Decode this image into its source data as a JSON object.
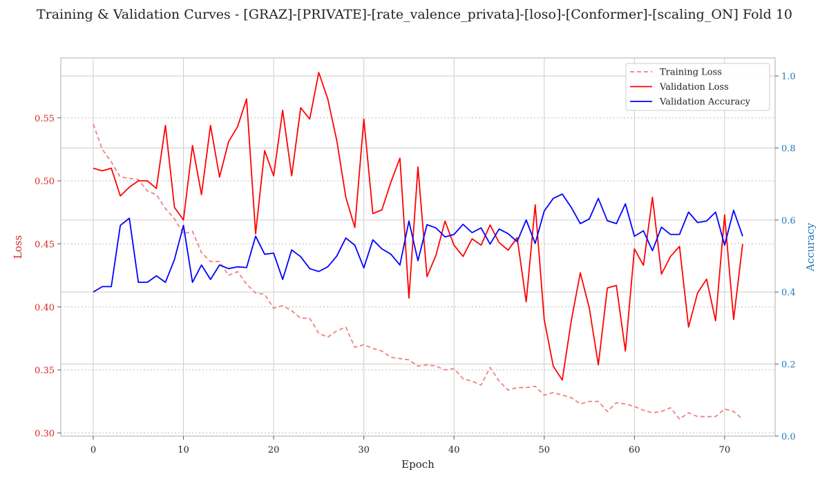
{
  "figure": {
    "title": "Training & Validation Curves - [GRAZ]-[PRIVATE]-[rate_valence_privata]-[loso]-[Conformer]-[scaling_ON] Fold 10"
  },
  "chart_data": {
    "type": "line",
    "title": "Training & Validation Curves - [GRAZ]-[PRIVATE]-[rate_valence_privata]-[loso]-[Conformer]-[scaling_ON] Fold 10",
    "xlabel": "Epoch",
    "ylabel_left": "Loss",
    "ylabel_right": "Accuracy",
    "xlim": [
      -3.6,
      75.6
    ],
    "ylim_left": [
      0.2975,
      0.5975
    ],
    "ylim_right": [
      0.0,
      1.05
    ],
    "xticks": [
      0,
      10,
      20,
      30,
      40,
      50,
      60,
      70
    ],
    "yticks_left": [
      0.3,
      0.35,
      0.4,
      0.45,
      0.5,
      0.55
    ],
    "yticks_right": [
      0.0,
      0.2,
      0.4,
      0.6,
      0.8,
      1.0
    ],
    "grid": true,
    "legend_position": "upper-right",
    "colors": {
      "loss_axis": "#d62728",
      "accuracy_axis": "#1f77b4",
      "training_loss": "#f08080",
      "validation_loss": "#ff0000",
      "validation_accuracy": "#0000ff"
    },
    "x": [
      0,
      1,
      2,
      3,
      4,
      5,
      6,
      7,
      8,
      9,
      10,
      11,
      12,
      13,
      14,
      15,
      16,
      17,
      18,
      19,
      20,
      21,
      22,
      23,
      24,
      25,
      26,
      27,
      28,
      29,
      30,
      31,
      32,
      33,
      34,
      35,
      36,
      37,
      38,
      39,
      40,
      41,
      42,
      43,
      44,
      45,
      46,
      47,
      48,
      49,
      50,
      51,
      52,
      53,
      54,
      55,
      56,
      57,
      58,
      59,
      60,
      61,
      62,
      63,
      64,
      65,
      66,
      67,
      68,
      69,
      70,
      71,
      72
    ],
    "series": [
      {
        "name": "Training Loss",
        "axis": "left",
        "style": "dashed",
        "values": [
          0.545,
          0.525,
          0.515,
          0.503,
          0.502,
          0.501,
          0.492,
          0.489,
          0.478,
          0.47,
          0.458,
          0.46,
          0.443,
          0.436,
          0.436,
          0.425,
          0.428,
          0.418,
          0.411,
          0.41,
          0.399,
          0.401,
          0.397,
          0.391,
          0.391,
          0.379,
          0.376,
          0.381,
          0.384,
          0.368,
          0.37,
          0.367,
          0.365,
          0.36,
          0.359,
          0.358,
          0.353,
          0.354,
          0.353,
          0.35,
          0.351,
          0.343,
          0.341,
          0.338,
          0.352,
          0.341,
          0.334,
          0.336,
          0.336,
          0.337,
          0.33,
          0.332,
          0.33,
          0.328,
          0.323,
          0.325,
          0.325,
          0.317,
          0.324,
          0.323,
          0.321,
          0.318,
          0.316,
          0.317,
          0.32,
          0.311,
          0.316,
          0.313,
          0.313,
          0.313,
          0.319,
          0.317,
          0.311
        ]
      },
      {
        "name": "Validation Loss",
        "axis": "left",
        "style": "solid",
        "values": [
          0.51,
          0.508,
          0.51,
          0.488,
          0.495,
          0.5,
          0.5,
          0.494,
          0.544,
          0.479,
          0.469,
          0.528,
          0.489,
          0.544,
          0.503,
          0.531,
          0.543,
          0.565,
          0.458,
          0.524,
          0.504,
          0.556,
          0.504,
          0.558,
          0.549,
          0.586,
          0.565,
          0.532,
          0.487,
          0.463,
          0.549,
          0.474,
          0.477,
          0.499,
          0.518,
          0.407,
          0.511,
          0.424,
          0.441,
          0.468,
          0.449,
          0.44,
          0.454,
          0.449,
          0.465,
          0.451,
          0.445,
          0.455,
          0.404,
          0.481,
          0.39,
          0.353,
          0.342,
          0.389,
          0.427,
          0.399,
          0.354,
          0.415,
          0.417,
          0.365,
          0.446,
          0.433,
          0.487,
          0.426,
          0.44,
          0.448,
          0.384,
          0.411,
          0.422,
          0.389,
          0.473,
          0.39,
          0.45
        ]
      },
      {
        "name": "Validation Accuracy",
        "axis": "right",
        "style": "solid",
        "values": [
          0.4,
          0.415,
          0.415,
          0.585,
          0.605,
          0.427,
          0.427,
          0.445,
          0.427,
          0.49,
          0.585,
          0.427,
          0.475,
          0.435,
          0.475,
          0.465,
          0.47,
          0.468,
          0.555,
          0.505,
          0.508,
          0.435,
          0.517,
          0.498,
          0.465,
          0.457,
          0.47,
          0.5,
          0.55,
          0.53,
          0.467,
          0.545,
          0.52,
          0.505,
          0.475,
          0.597,
          0.487,
          0.587,
          0.578,
          0.553,
          0.56,
          0.588,
          0.565,
          0.578,
          0.533,
          0.575,
          0.562,
          0.54,
          0.6,
          0.535,
          0.625,
          0.66,
          0.672,
          0.635,
          0.59,
          0.603,
          0.66,
          0.598,
          0.59,
          0.645,
          0.555,
          0.57,
          0.515,
          0.58,
          0.56,
          0.56,
          0.622,
          0.593,
          0.597,
          0.622,
          0.53,
          0.627,
          0.555
        ]
      }
    ]
  }
}
